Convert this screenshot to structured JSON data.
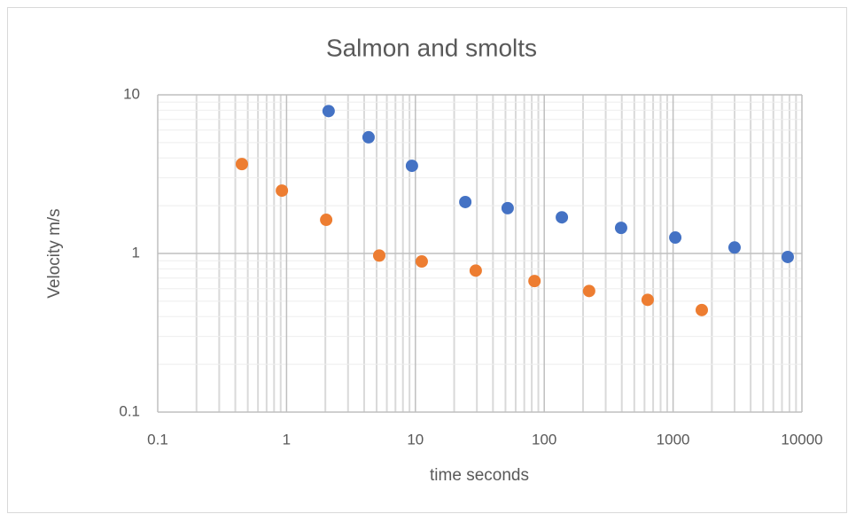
{
  "chart_data": {
    "type": "scatter",
    "title": "Salmon and smolts",
    "x_label": "time seconds",
    "y_label": "Velocity m/s",
    "x_log": true,
    "y_log": true,
    "grid": true,
    "minor_grid": true,
    "xlim": [
      0.1,
      10000
    ],
    "xticks": [
      0.1,
      1,
      10,
      100,
      1000,
      10000
    ],
    "ylim": [
      0.1,
      10
    ],
    "yticks": [
      0.1,
      1,
      10
    ],
    "series": [
      {
        "color": "#4472c4",
        "x": [
          2.12,
          4.33,
          9.4,
          24.4,
          52,
          137,
          395,
          1040,
          3000,
          7760
        ],
        "values": [
          7.9,
          5.4,
          3.57,
          2.11,
          1.93,
          1.69,
          1.45,
          1.26,
          1.09,
          0.95
        ]
      },
      {
        "color": "#ed7d31",
        "x": [
          0.45,
          0.92,
          2.03,
          5.24,
          11.2,
          29.4,
          84,
          223,
          635,
          1670
        ],
        "values": [
          3.66,
          2.49,
          1.63,
          0.97,
          0.89,
          0.78,
          0.67,
          0.58,
          0.51,
          0.44
        ]
      }
    ]
  }
}
